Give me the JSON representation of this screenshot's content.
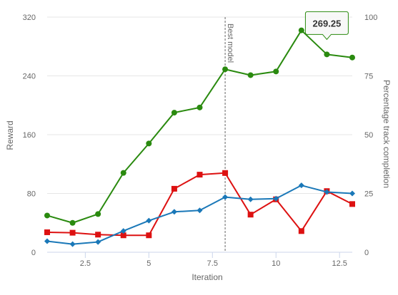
{
  "chart_data": {
    "type": "line",
    "xlabel": "Iteration",
    "ylabel_left": "Reward",
    "ylabel_right": "Percentage track completion",
    "x_ticks": [
      "2.5",
      "5",
      "7.5",
      "10",
      "12.5"
    ],
    "x_tick_values": [
      2.5,
      5,
      7.5,
      10,
      12.5
    ],
    "xlim": [
      1,
      13
    ],
    "y_left_ticks": [
      "0",
      "80",
      "160",
      "240",
      "320"
    ],
    "y_left_tick_values": [
      0,
      80,
      160,
      240,
      320
    ],
    "ylim_left": [
      0,
      320
    ],
    "y_right_ticks": [
      "0",
      "25",
      "50",
      "75",
      "100"
    ],
    "y_right_tick_values": [
      0,
      25,
      50,
      75,
      100
    ],
    "ylim_right": [
      0,
      100
    ],
    "plot_line": {
      "x": 8,
      "label": "Best model"
    },
    "tooltip": {
      "x": 12,
      "series_index": 0,
      "text": "269.25"
    },
    "grid": "horizontal",
    "series": [
      {
        "axis": "left",
        "color": "#2a8a0f",
        "marker": "circle",
        "x": [
          1,
          2,
          3,
          4,
          5,
          6,
          7,
          8,
          9,
          10,
          11,
          12,
          13
        ],
        "values": [
          50,
          40,
          52,
          108,
          148,
          190,
          197,
          249,
          241,
          246,
          302,
          269.25,
          265
        ]
      },
      {
        "axis": "right",
        "color": "#dd1111",
        "marker": "square",
        "x": [
          1,
          2,
          3,
          4,
          5,
          6,
          7,
          8,
          9,
          10,
          11,
          12,
          13
        ],
        "values": [
          8.5,
          8.3,
          7.5,
          7.2,
          7.2,
          27,
          33,
          33.7,
          16,
          22.5,
          9,
          26,
          20.5
        ]
      },
      {
        "axis": "left",
        "color": "#1a78b8",
        "marker": "diamond",
        "x": [
          1,
          2,
          3,
          4,
          5,
          6,
          7,
          8,
          9,
          10,
          11,
          12,
          13
        ],
        "values": [
          15,
          11,
          14,
          29,
          43,
          55,
          57,
          75,
          72,
          73,
          91,
          82,
          80
        ]
      }
    ]
  }
}
